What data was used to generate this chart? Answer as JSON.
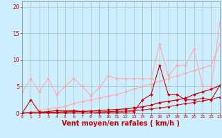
{
  "background_color": "#cceeff",
  "grid_color": "#aabbbb",
  "xlabel": "Vent moyen/en rafales ( km/h )",
  "xlabel_color": "#cc0000",
  "xlabel_fontsize": 7,
  "ytick_color": "#cc0000",
  "xtick_color": "#cc0000",
  "ylim": [
    0,
    21
  ],
  "xlim": [
    0,
    23
  ],
  "yticks": [
    0,
    5,
    10,
    15,
    20
  ],
  "xticks": [
    0,
    1,
    2,
    3,
    4,
    5,
    6,
    7,
    8,
    9,
    10,
    11,
    12,
    13,
    14,
    15,
    16,
    17,
    18,
    19,
    20,
    21,
    22,
    23
  ],
  "lines": [
    {
      "x": [
        0,
        1,
        2,
        3,
        4,
        5,
        6,
        7,
        8,
        9,
        10,
        11,
        12,
        13,
        14,
        15,
        16,
        17,
        18,
        19,
        20,
        21,
        22,
        23
      ],
      "y": [
        4,
        6.5,
        4,
        6.5,
        3.5,
        5,
        6.5,
        5,
        3.3,
        4.8,
        7,
        6.5,
        6.5,
        6.5,
        6.5,
        6.5,
        13,
        7,
        9,
        9,
        12,
        5,
        5,
        17
      ],
      "color": "#ffaaaa",
      "lw": 0.8,
      "marker": "D",
      "markersize": 2.0,
      "zorder": 2
    },
    {
      "x": [
        0,
        1,
        2,
        3,
        4,
        5,
        6,
        7,
        8,
        9,
        10,
        11,
        12,
        13,
        14,
        15,
        16,
        17,
        18,
        19,
        20,
        21,
        22,
        23
      ],
      "y": [
        0,
        0.2,
        0.5,
        0.8,
        1.0,
        1.3,
        1.8,
        2.2,
        2.5,
        2.8,
        3.2,
        3.5,
        4.0,
        4.5,
        5.0,
        5.5,
        6.0,
        6.5,
        7.0,
        7.5,
        8.0,
        8.5,
        9.0,
        13
      ],
      "color": "#ffaaaa",
      "lw": 0.8,
      "marker": "D",
      "markersize": 2.0,
      "zorder": 2
    },
    {
      "x": [
        0,
        1,
        2,
        3,
        4,
        5,
        6,
        7,
        8,
        9,
        10,
        11,
        12,
        13,
        14,
        15,
        16,
        17,
        18,
        19,
        20,
        21,
        22,
        23
      ],
      "y": [
        0,
        2.5,
        0.2,
        0.3,
        0.5,
        0.4,
        0.5,
        0.3,
        0.2,
        0.1,
        0.1,
        0.1,
        0.2,
        0.3,
        2.5,
        3.5,
        9,
        3.5,
        3.5,
        2.5,
        2.5,
        2.8,
        2.5,
        5.2
      ],
      "color": "#cc0000",
      "lw": 0.8,
      "marker": "D",
      "markersize": 2.0,
      "zorder": 4
    },
    {
      "x": [
        0,
        1,
        2,
        3,
        4,
        5,
        6,
        7,
        8,
        9,
        10,
        11,
        12,
        13,
        14,
        15,
        16,
        17,
        18,
        19,
        20,
        21,
        22,
        23
      ],
      "y": [
        0,
        0.1,
        0.1,
        0.15,
        0.2,
        0.25,
        0.3,
        0.35,
        0.4,
        0.5,
        0.6,
        0.7,
        0.8,
        1.0,
        1.2,
        1.5,
        2.0,
        2.2,
        2.5,
        2.8,
        3.5,
        4.0,
        4.5,
        5.2
      ],
      "color": "#cc0000",
      "lw": 0.9,
      "marker": "D",
      "markersize": 2.0,
      "zorder": 4
    },
    {
      "x": [
        0,
        1,
        2,
        3,
        4,
        5,
        6,
        7,
        8,
        9,
        10,
        11,
        12,
        13,
        14,
        15,
        16,
        17,
        18,
        19,
        20,
        21,
        22,
        23
      ],
      "y": [
        0,
        0.05,
        0.05,
        0.08,
        0.1,
        0.12,
        0.15,
        0.18,
        0.2,
        0.25,
        0.3,
        0.35,
        0.4,
        0.5,
        0.6,
        0.8,
        1.0,
        1.2,
        1.5,
        1.8,
        2.0,
        2.3,
        2.6,
        3.0
      ],
      "color": "#cc0000",
      "lw": 0.7,
      "marker": "D",
      "markersize": 1.8,
      "zorder": 4
    }
  ]
}
